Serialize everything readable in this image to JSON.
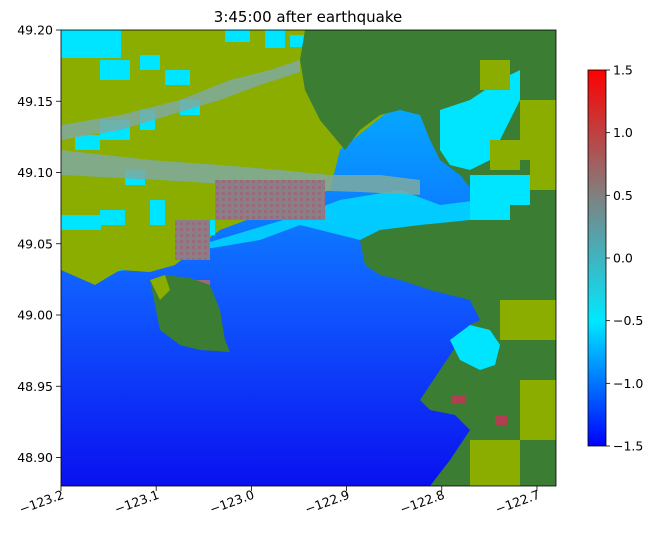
{
  "chart_data": {
    "type": "heatmap",
    "title": "3:45:00 after earthquake",
    "xlabel": "",
    "ylabel": "",
    "xlim": [
      -123.2,
      -122.68
    ],
    "ylim": [
      48.88,
      49.2
    ],
    "x_ticks": [
      -123.2,
      -123.1,
      -123.0,
      -122.9,
      -122.8,
      -122.7
    ],
    "x_tick_labels": [
      "−123.2",
      "−123.1",
      "−123.0",
      "−122.9",
      "−122.8",
      "−122.7"
    ],
    "y_ticks": [
      48.9,
      48.95,
      49.0,
      49.05,
      49.1,
      49.15,
      49.2
    ],
    "y_tick_labels": [
      "48.90",
      "48.95",
      "49.00",
      "49.05",
      "49.10",
      "49.15",
      "49.20"
    ],
    "colorbar": {
      "range": [
        -1.5,
        1.5
      ],
      "ticks": [
        -1.5,
        -1.0,
        -0.5,
        0.0,
        0.5,
        1.0,
        1.5
      ],
      "tick_labels": [
        "−1.5",
        "−1.0",
        "−0.5",
        "0.0",
        "0.5",
        "1.0",
        "1.5"
      ],
      "colors": [
        "#0000ff",
        "#00e8ff",
        "#808080",
        "#ff0000"
      ]
    },
    "colors": {
      "land_dark": "#3a7d33",
      "land_lowland": "#8aad00",
      "water_deep": "#0a10f0",
      "water_mid": "#1e6cff",
      "water_shallow": "#00e5ff",
      "flooded_high": "#8a7a80",
      "flooded_peak": "#b04050"
    },
    "grid": false
  }
}
